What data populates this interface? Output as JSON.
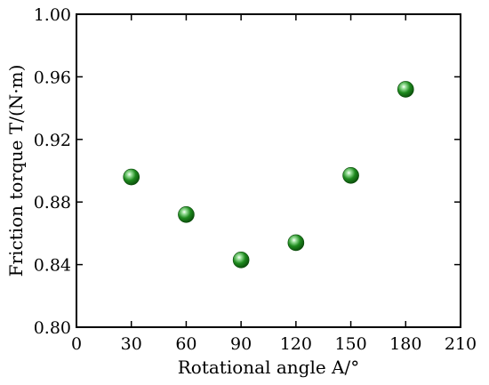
{
  "chart_data": {
    "type": "scatter",
    "title": "",
    "xlabel": "Rotational angle A/°",
    "ylabel": "Friction torque T/(N·m)",
    "xlim": [
      0,
      210
    ],
    "ylim": [
      0.8,
      1.0
    ],
    "x_ticks": [
      "0",
      "30",
      "60",
      "90",
      "120",
      "150",
      "180",
      "210"
    ],
    "y_ticks": [
      "0.80",
      "0.84",
      "0.88",
      "0.92",
      "0.96",
      "1.00"
    ],
    "grid": false,
    "legend": "none",
    "marker_color": "#1e8a1e",
    "series": [
      {
        "x": [
          30,
          60,
          90,
          120,
          150,
          180
        ],
        "y": [
          0.896,
          0.872,
          0.843,
          0.854,
          0.897,
          0.952
        ]
      }
    ]
  }
}
